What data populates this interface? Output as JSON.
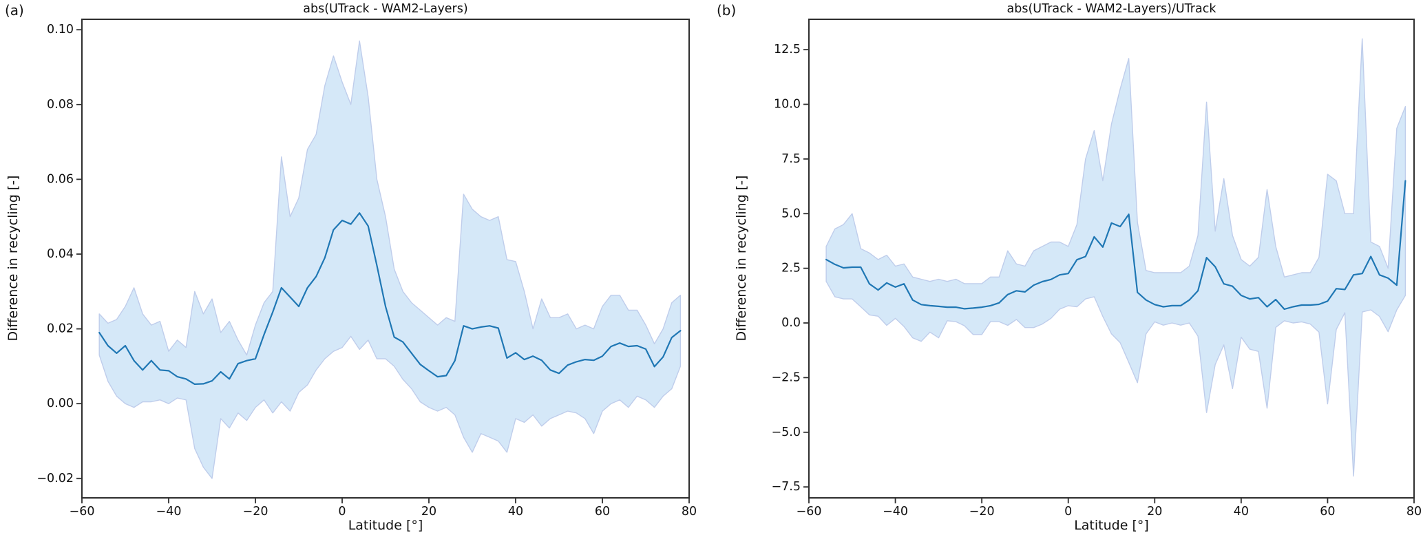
{
  "figure": {
    "panels": [
      {
        "corner_label": "(a)"
      },
      {
        "corner_label": "(b)"
      }
    ]
  },
  "colors": {
    "mean_line": "#1f77b4",
    "band_fill": "#d5e8f8",
    "band_edge": "#bfcdeb",
    "frame": "#2e2e2e",
    "text": "#111111"
  },
  "chart_data": [
    {
      "type": "line",
      "title": "abs(UTrack - WAM2-Layers)",
      "xlabel": "Latitude [°]",
      "ylabel": "Difference in recycling [-]",
      "grid": false,
      "legend": "none",
      "xlim": [
        -60,
        80
      ],
      "ylim": [
        -0.0252,
        0.1028
      ],
      "xticks": [
        -60,
        -40,
        -20,
        0,
        20,
        40,
        60,
        80
      ],
      "xtick_labels": [
        "−60",
        "−40",
        "−20",
        "0",
        "20",
        "40",
        "60",
        "80"
      ],
      "yticks": [
        -0.02,
        0.0,
        0.02,
        0.04,
        0.06,
        0.08,
        0.1
      ],
      "ytick_labels": [
        "−0.02",
        "0.00",
        "0.02",
        "0.04",
        "0.06",
        "0.08",
        "0.10"
      ],
      "x": [
        -56,
        -54,
        -52,
        -50,
        -48,
        -46,
        -44,
        -42,
        -40,
        -38,
        -36,
        -34,
        -32,
        -30,
        -28,
        -26,
        -24,
        -22,
        -20,
        -18,
        -16,
        -14,
        -12,
        -10,
        -8,
        -6,
        -4,
        -2,
        0,
        2,
        4,
        6,
        8,
        10,
        12,
        14,
        16,
        18,
        20,
        22,
        24,
        26,
        28,
        30,
        32,
        34,
        36,
        38,
        40,
        42,
        44,
        46,
        48,
        50,
        52,
        54,
        56,
        58,
        60,
        62,
        64,
        66,
        68,
        70,
        72,
        74,
        76,
        78
      ],
      "series": [
        {
          "name": "mean absolute difference",
          "values": [
            0.019,
            0.0155,
            0.0135,
            0.0155,
            0.0115,
            0.009,
            0.0115,
            0.009,
            0.0088,
            0.0072,
            0.0066,
            0.0052,
            0.0053,
            0.0061,
            0.0085,
            0.0066,
            0.0107,
            0.0115,
            0.012,
            0.0185,
            0.0245,
            0.031,
            0.0285,
            0.026,
            0.031,
            0.034,
            0.039,
            0.0465,
            0.049,
            0.048,
            0.051,
            0.0475,
            0.037,
            0.026,
            0.0178,
            0.0165,
            0.0135,
            0.0105,
            0.0088,
            0.0072,
            0.0075,
            0.0115,
            0.0208,
            0.02,
            0.0205,
            0.0208,
            0.0202,
            0.0122,
            0.0136,
            0.0118,
            0.0127,
            0.0116,
            0.009,
            0.0081,
            0.0103,
            0.0112,
            0.0118,
            0.0116,
            0.0127,
            0.0153,
            0.0162,
            0.0153,
            0.0155,
            0.0146,
            0.0099,
            0.0125,
            0.0177,
            0.0195
          ]
        },
        {
          "name": "band upper",
          "values": [
            0.024,
            0.0215,
            0.0225,
            0.026,
            0.031,
            0.024,
            0.021,
            0.022,
            0.014,
            0.017,
            0.015,
            0.03,
            0.024,
            0.028,
            0.019,
            0.022,
            0.017,
            0.013,
            0.021,
            0.027,
            0.03,
            0.066,
            0.05,
            0.055,
            0.068,
            0.072,
            0.085,
            0.093,
            0.086,
            0.08,
            0.097,
            0.082,
            0.06,
            0.05,
            0.036,
            0.03,
            0.027,
            0.025,
            0.023,
            0.021,
            0.023,
            0.022,
            0.056,
            0.052,
            0.05,
            0.049,
            0.05,
            0.0385,
            0.038,
            0.03,
            0.02,
            0.028,
            0.023,
            0.023,
            0.024,
            0.02,
            0.021,
            0.02,
            0.026,
            0.029,
            0.029,
            0.025,
            0.025,
            0.021,
            0.016,
            0.02,
            0.027,
            0.029
          ]
        },
        {
          "name": "band lower",
          "values": [
            0.013,
            0.006,
            0.002,
            0.0,
            -0.001,
            0.0005,
            0.0005,
            0.001,
            0.0,
            0.0015,
            0.001,
            -0.012,
            -0.017,
            -0.02,
            -0.004,
            -0.0065,
            -0.0025,
            -0.0045,
            -0.001,
            0.001,
            -0.0025,
            0.0005,
            -0.002,
            0.003,
            0.005,
            0.009,
            0.012,
            0.014,
            0.015,
            0.018,
            0.0145,
            0.017,
            0.012,
            0.012,
            0.01,
            0.0065,
            0.004,
            0.0005,
            -0.001,
            -0.002,
            -0.001,
            -0.003,
            -0.009,
            -0.013,
            -0.008,
            -0.009,
            -0.01,
            -0.013,
            -0.004,
            -0.005,
            -0.003,
            -0.006,
            -0.004,
            -0.003,
            -0.002,
            -0.0025,
            -0.004,
            -0.008,
            -0.002,
            0.0,
            0.001,
            -0.001,
            0.002,
            0.001,
            -0.001,
            0.002,
            0.004,
            0.01
          ]
        }
      ]
    },
    {
      "type": "line",
      "title": "abs(UTrack - WAM2-Layers)/UTrack",
      "xlabel": "Latitude [°]",
      "ylabel": "Difference in recycling [-]",
      "grid": false,
      "legend": "none",
      "xlim": [
        -60,
        80
      ],
      "ylim": [
        -8.0,
        13.89
      ],
      "xticks": [
        -60,
        -40,
        -20,
        0,
        20,
        40,
        60,
        80
      ],
      "xtick_labels": [
        "−60",
        "−40",
        "−20",
        "0",
        "20",
        "40",
        "60",
        "80"
      ],
      "yticks": [
        -7.5,
        -5.0,
        -2.5,
        0.0,
        2.5,
        5.0,
        7.5,
        10.0,
        12.5
      ],
      "ytick_labels": [
        "−7.5",
        "−5.0",
        "−2.5",
        "0.0",
        "2.5",
        "5.0",
        "7.5",
        "10.0",
        "12.5"
      ],
      "x": [
        -56,
        -54,
        -52,
        -50,
        -48,
        -46,
        -44,
        -42,
        -40,
        -38,
        -36,
        -34,
        -32,
        -30,
        -28,
        -26,
        -24,
        -22,
        -20,
        -18,
        -16,
        -14,
        -12,
        -10,
        -8,
        -6,
        -4,
        -2,
        0,
        2,
        4,
        6,
        8,
        10,
        12,
        14,
        16,
        18,
        20,
        22,
        24,
        26,
        28,
        30,
        32,
        34,
        36,
        38,
        40,
        42,
        44,
        46,
        48,
        50,
        52,
        54,
        56,
        58,
        60,
        62,
        64,
        66,
        68,
        70,
        72,
        74,
        76,
        78
      ],
      "series": [
        {
          "name": "mean relative difference",
          "values": [
            2.9,
            2.68,
            2.52,
            2.55,
            2.55,
            1.79,
            1.51,
            1.83,
            1.64,
            1.79,
            1.05,
            0.84,
            0.79,
            0.76,
            0.72,
            0.72,
            0.65,
            0.68,
            0.72,
            0.79,
            0.92,
            1.3,
            1.47,
            1.42,
            1.73,
            1.89,
            1.99,
            2.2,
            2.26,
            2.89,
            3.04,
            3.94,
            3.47,
            4.57,
            4.41,
            4.97,
            1.4,
            1.05,
            0.84,
            0.74,
            0.79,
            0.79,
            1.05,
            1.47,
            2.99,
            2.57,
            1.79,
            1.68,
            1.26,
            1.1,
            1.16,
            0.74,
            1.07,
            0.63,
            0.74,
            0.82,
            0.82,
            0.85,
            1.0,
            1.57,
            1.53,
            2.2,
            2.26,
            3.04,
            2.2,
            2.05,
            1.73,
            6.5
          ]
        },
        {
          "name": "band upper",
          "values": [
            3.5,
            4.3,
            4.5,
            5.0,
            3.4,
            3.2,
            2.9,
            3.1,
            2.6,
            2.7,
            2.1,
            2.0,
            1.9,
            2.0,
            1.9,
            2.0,
            1.8,
            1.8,
            1.8,
            2.1,
            2.1,
            3.3,
            2.7,
            2.6,
            3.3,
            3.5,
            3.7,
            3.7,
            3.5,
            4.5,
            7.5,
            8.8,
            6.5,
            9.1,
            10.7,
            12.1,
            4.6,
            2.4,
            2.3,
            2.3,
            2.3,
            2.3,
            2.6,
            4.0,
            10.1,
            4.2,
            6.6,
            4.0,
            2.9,
            2.6,
            3.0,
            6.1,
            3.5,
            2.1,
            2.2,
            2.3,
            2.3,
            3.0,
            6.8,
            6.5,
            5.0,
            5.0,
            13.0,
            3.7,
            3.5,
            2.5,
            8.9,
            9.9
          ]
        },
        {
          "name": "band lower",
          "values": [
            1.9,
            1.2,
            1.1,
            1.1,
            0.74,
            0.37,
            0.31,
            -0.11,
            0.21,
            -0.16,
            -0.68,
            -0.84,
            -0.42,
            -0.68,
            0.1,
            0.06,
            -0.13,
            -0.53,
            -0.53,
            0.06,
            0.06,
            -0.11,
            0.16,
            -0.21,
            -0.21,
            -0.05,
            0.21,
            0.63,
            0.79,
            0.74,
            1.1,
            1.2,
            0.3,
            -0.5,
            -0.9,
            -1.8,
            -2.73,
            -0.5,
            0.05,
            -0.1,
            0.0,
            -0.1,
            0.0,
            -0.6,
            -4.1,
            -1.9,
            -1.0,
            -3.0,
            -0.65,
            -1.2,
            -1.3,
            -3.9,
            -0.2,
            0.1,
            0.0,
            0.05,
            -0.05,
            -0.42,
            -3.7,
            -0.3,
            0.47,
            -7.0,
            0.5,
            0.6,
            0.3,
            -0.4,
            0.6,
            1.26
          ]
        }
      ]
    }
  ]
}
